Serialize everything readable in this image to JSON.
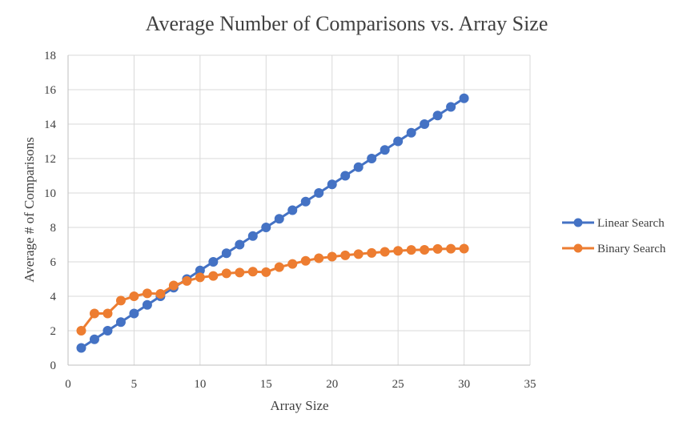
{
  "chart_data": {
    "type": "line",
    "title": "Average Number of Comparisons vs. Array Size",
    "xlabel": "Array Size",
    "ylabel": "Average # of Comparisons",
    "xlim": [
      0,
      35
    ],
    "ylim": [
      0,
      18
    ],
    "x_ticks": [
      0,
      5,
      10,
      15,
      20,
      25,
      30,
      35
    ],
    "y_ticks": [
      0,
      2,
      4,
      6,
      8,
      10,
      12,
      14,
      16,
      18
    ],
    "grid": true,
    "legend_position": "right",
    "series": [
      {
        "name": "Linear Search",
        "color": "#4472c4",
        "x": [
          1,
          2,
          3,
          4,
          5,
          6,
          7,
          8,
          9,
          10,
          11,
          12,
          13,
          14,
          15,
          16,
          17,
          18,
          19,
          20,
          21,
          22,
          23,
          24,
          25,
          26,
          27,
          28,
          29,
          30
        ],
        "y": [
          1,
          1.5,
          2,
          2.5,
          3,
          3.5,
          4,
          4.5,
          5,
          5.5,
          6,
          6.5,
          7,
          7.5,
          8,
          8.5,
          9,
          9.5,
          10,
          10.5,
          11,
          11.5,
          12,
          12.5,
          13,
          13.5,
          14,
          14.5,
          15,
          15.5
        ]
      },
      {
        "name": "Binary Search",
        "color": "#ed7d31",
        "x": [
          1,
          2,
          3,
          4,
          5,
          6,
          7,
          8,
          9,
          10,
          11,
          12,
          13,
          14,
          15,
          16,
          17,
          18,
          19,
          20,
          21,
          22,
          23,
          24,
          25,
          26,
          27,
          28,
          29,
          30
        ],
        "y": [
          2,
          3,
          3,
          3.75,
          4,
          4.17,
          4.14,
          4.63,
          4.89,
          5.1,
          5.18,
          5.33,
          5.38,
          5.43,
          5.4,
          5.69,
          5.88,
          6.06,
          6.21,
          6.3,
          6.38,
          6.45,
          6.52,
          6.58,
          6.64,
          6.69,
          6.7,
          6.75,
          6.76,
          6.77
        ]
      }
    ]
  }
}
